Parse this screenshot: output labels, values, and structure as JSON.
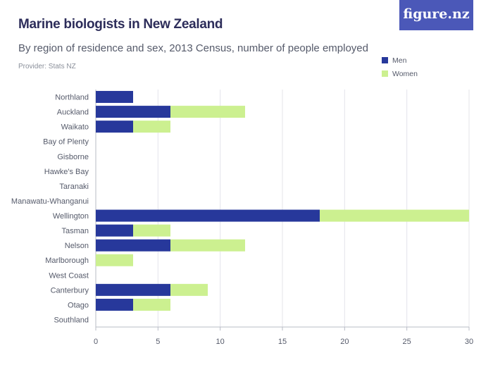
{
  "logo": "figure.nz",
  "colors": {
    "men": "#27389b",
    "women": "#ccf090",
    "grid": "#e4e4ea",
    "axis": "#b9bcc6",
    "text": "#555a6a"
  },
  "chart_data": {
    "type": "bar",
    "orientation": "horizontal",
    "stacked": true,
    "title": "Marine biologists in New Zealand",
    "subtitle": "By region of residence and sex, 2013 Census, number of people employed",
    "provider": "Provider: Stats NZ",
    "categories": [
      "Northland",
      "Auckland",
      "Waikato",
      "Bay of Plenty",
      "Gisborne",
      "Hawke's Bay",
      "Taranaki",
      "Manawatu-Whanganui",
      "Wellington",
      "Tasman",
      "Nelson",
      "Marlborough",
      "West Coast",
      "Canterbury",
      "Otago",
      "Southland"
    ],
    "series": [
      {
        "name": "Men",
        "values": [
          3,
          6,
          3,
          0,
          0,
          0,
          0,
          0,
          18,
          3,
          6,
          0,
          0,
          6,
          3,
          0
        ]
      },
      {
        "name": "Women",
        "values": [
          0,
          6,
          3,
          0,
          0,
          0,
          0,
          0,
          12,
          3,
          6,
          3,
          0,
          3,
          3,
          0
        ]
      }
    ],
    "xlim": [
      0,
      30
    ],
    "xticks": [
      0,
      5,
      10,
      15,
      20,
      25,
      30
    ],
    "grid": true,
    "legend": "top-right"
  }
}
